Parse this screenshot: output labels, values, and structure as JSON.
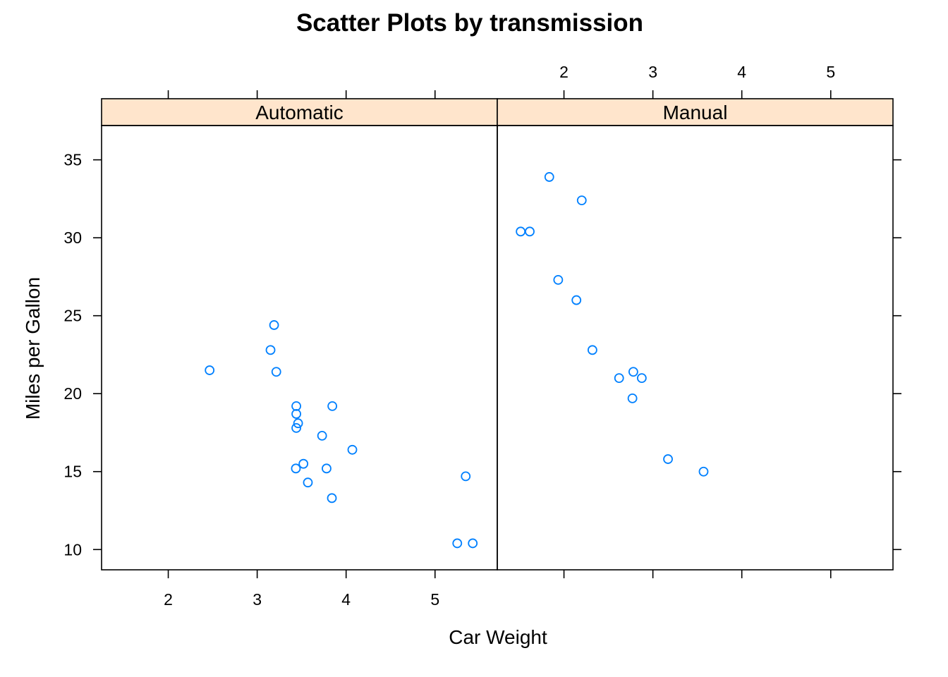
{
  "chart_data": {
    "type": "scatter",
    "title": "Scatter Plots by transmission",
    "xlabel": "Car Weight",
    "ylabel": "Miles per Gallon",
    "xlim": [
      1.25,
      5.7
    ],
    "ylim": [
      8.7,
      37.2
    ],
    "x_ticks": [
      2,
      3,
      4,
      5
    ],
    "y_ticks": [
      10,
      15,
      20,
      25,
      30,
      35
    ],
    "grid": false,
    "point_color": "#0080ff",
    "strip_color": "#ffe5cc",
    "panels": [
      {
        "name": "Automatic",
        "points": [
          {
            "x": 2.465,
            "y": 21.5
          },
          {
            "x": 3.15,
            "y": 22.8
          },
          {
            "x": 3.19,
            "y": 24.4
          },
          {
            "x": 3.215,
            "y": 21.4
          },
          {
            "x": 3.44,
            "y": 19.2
          },
          {
            "x": 3.44,
            "y": 18.7
          },
          {
            "x": 3.46,
            "y": 18.1
          },
          {
            "x": 3.44,
            "y": 17.8
          },
          {
            "x": 3.73,
            "y": 17.3
          },
          {
            "x": 4.07,
            "y": 16.4
          },
          {
            "x": 3.52,
            "y": 15.5
          },
          {
            "x": 3.435,
            "y": 15.2
          },
          {
            "x": 3.78,
            "y": 15.2
          },
          {
            "x": 3.57,
            "y": 14.3
          },
          {
            "x": 3.84,
            "y": 13.3
          },
          {
            "x": 3.845,
            "y": 19.2
          },
          {
            "x": 5.345,
            "y": 14.7
          },
          {
            "x": 5.25,
            "y": 10.4
          },
          {
            "x": 5.424,
            "y": 10.4
          }
        ]
      },
      {
        "name": "Manual",
        "points": [
          {
            "x": 1.835,
            "y": 33.9
          },
          {
            "x": 2.2,
            "y": 32.4
          },
          {
            "x": 1.513,
            "y": 30.4
          },
          {
            "x": 1.615,
            "y": 30.4
          },
          {
            "x": 1.935,
            "y": 27.3
          },
          {
            "x": 2.14,
            "y": 26.0
          },
          {
            "x": 2.32,
            "y": 22.8
          },
          {
            "x": 2.62,
            "y": 21.0
          },
          {
            "x": 2.875,
            "y": 21.0
          },
          {
            "x": 2.78,
            "y": 21.4
          },
          {
            "x": 2.77,
            "y": 19.7
          },
          {
            "x": 3.17,
            "y": 15.8
          },
          {
            "x": 3.57,
            "y": 15.0
          }
        ]
      }
    ]
  }
}
